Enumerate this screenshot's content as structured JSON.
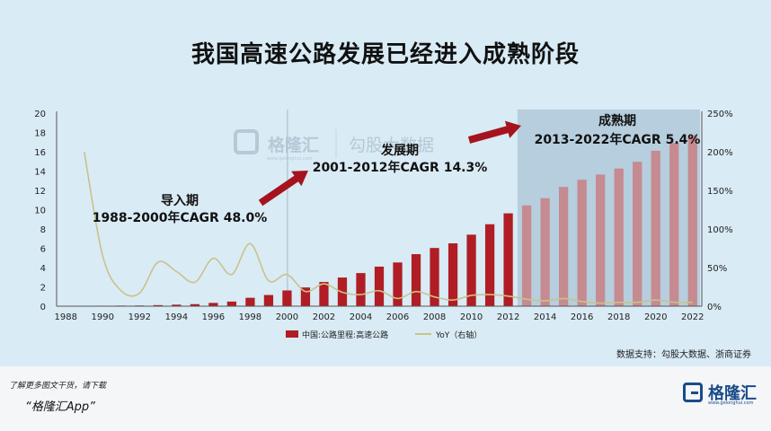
{
  "title": "我国高速公路发展已经进入成熟阶段",
  "source": "数据支持：勾股大数据、浙商证券",
  "footer": {
    "line1": "了解更多图文干货，请下载",
    "line2": "“格隆汇App”"
  },
  "logo": {
    "text": "格隆汇",
    "sub": "www.gelonghui.com"
  },
  "watermark": {
    "brand": "格隆汇",
    "text": "勾股大数据",
    "sub": "www.gelonghui.com"
  },
  "colors": {
    "bar": "#b01d24",
    "bar_mature": "#c68a91",
    "line": "#c9c28a",
    "highlight": "#b6cedd",
    "arrow": "#a5141e"
  },
  "chart_data": {
    "type": "bar",
    "x": [
      1988,
      1989,
      1990,
      1991,
      1992,
      1993,
      1994,
      1995,
      1996,
      1997,
      1998,
      1999,
      2000,
      2001,
      2002,
      2003,
      2004,
      2005,
      2006,
      2007,
      2008,
      2009,
      2010,
      2011,
      2012,
      2013,
      2014,
      2015,
      2016,
      2017,
      2018,
      2019,
      2020,
      2021,
      2022
    ],
    "x_ticks": [
      "1988",
      "1990",
      "1992",
      "1994",
      "1996",
      "1998",
      "2000",
      "2002",
      "2004",
      "2006",
      "2008",
      "2010",
      "2012",
      "2014",
      "2016",
      "2018",
      "2020",
      "2022"
    ],
    "y_left_ticks": [
      "0",
      "2",
      "4",
      "6",
      "8",
      "10",
      "12",
      "14",
      "16",
      "18",
      "20"
    ],
    "y_right_ticks": [
      "0%",
      "50%",
      "100%",
      "150%",
      "200%",
      "250%"
    ],
    "ylim_left": [
      0,
      20
    ],
    "ylim_right": [
      0,
      2.5
    ],
    "series": [
      {
        "name": "中国:公路里程:高速公路",
        "axis": "left",
        "type": "bar",
        "values": [
          0.01,
          0.03,
          0.05,
          0.06,
          0.07,
          0.11,
          0.16,
          0.21,
          0.34,
          0.48,
          0.87,
          1.16,
          1.63,
          1.94,
          2.51,
          2.97,
          3.43,
          4.1,
          4.53,
          5.39,
          6.03,
          6.51,
          7.41,
          8.49,
          9.62,
          10.44,
          11.19,
          12.35,
          13.1,
          13.64,
          14.26,
          14.96,
          16.1,
          16.91,
          17.73
        ]
      },
      {
        "name": "YoY（右轴）",
        "axis": "right",
        "type": "line",
        "values": [
          null,
          2.0,
          0.65,
          0.2,
          0.17,
          0.57,
          0.45,
          0.31,
          0.62,
          0.41,
          0.81,
          0.33,
          0.41,
          0.19,
          0.29,
          0.18,
          0.15,
          0.2,
          0.1,
          0.19,
          0.12,
          0.08,
          0.14,
          0.15,
          0.13,
          0.09,
          0.07,
          0.1,
          0.06,
          0.04,
          0.05,
          0.05,
          0.08,
          0.05,
          0.05
        ]
      }
    ],
    "annotations": [
      {
        "label": "导入期",
        "text": "1988-2000年CAGR 48.0%"
      },
      {
        "label": "发展期",
        "text": "2001-2012年CAGR 14.3%"
      },
      {
        "label": "成熟期",
        "text": "2013-2022年CAGR 5.4%"
      }
    ],
    "highlight_range": [
      2013,
      2022
    ],
    "divider_year": 2000,
    "legend_placement": "bottom",
    "grid": false
  }
}
